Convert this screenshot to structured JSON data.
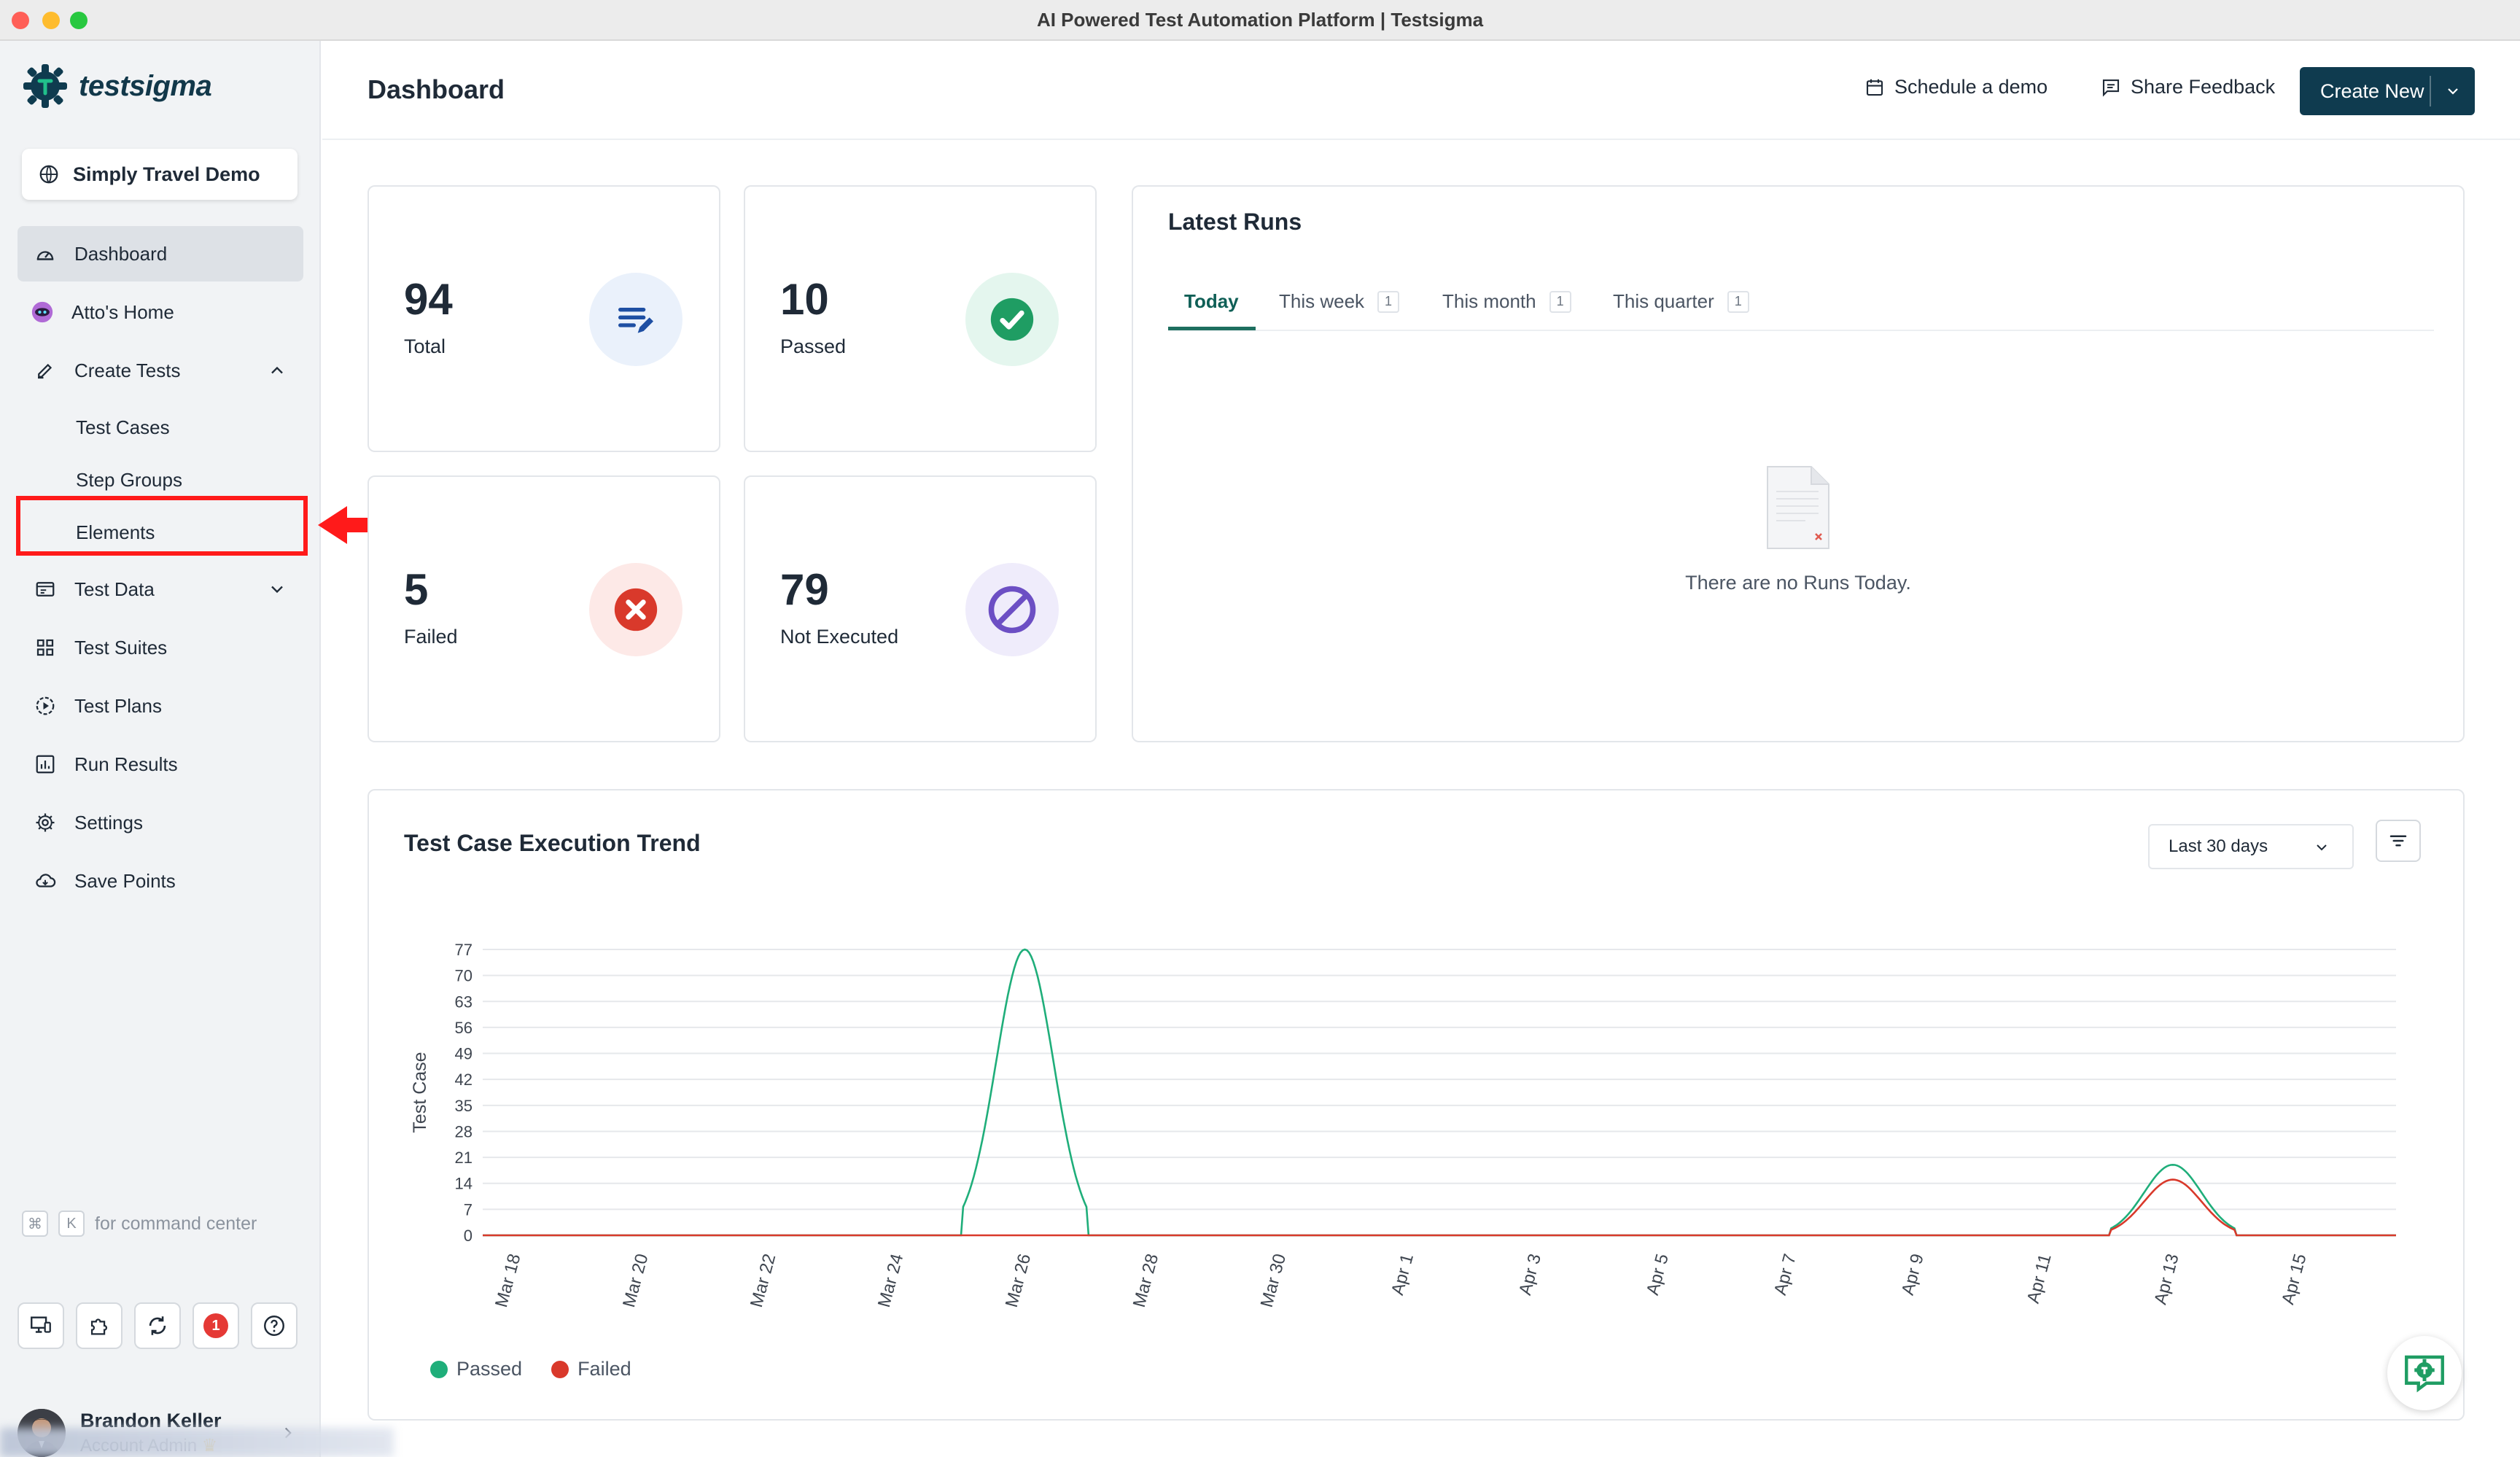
{
  "window": {
    "title": "AI Powered Test Automation Platform | Testsigma"
  },
  "brand": {
    "name": "testsigma",
    "color": "#0f3b4f"
  },
  "sidebar": {
    "project": "Simply Travel Demo",
    "items": [
      {
        "label": "Dashboard",
        "icon": "dashboard-icon",
        "active": true
      },
      {
        "label": "Atto's Home",
        "icon": "atto-icon"
      },
      {
        "label": "Create Tests",
        "icon": "pencil-icon",
        "expanded": true,
        "children": [
          "Test Cases",
          "Step Groups",
          "Elements"
        ]
      },
      {
        "label": "Test Data",
        "icon": "test-data-icon",
        "expanded": false
      },
      {
        "label": "Test Suites",
        "icon": "grid-icon"
      },
      {
        "label": "Test Plans",
        "icon": "play-circle-icon"
      },
      {
        "label": "Run Results",
        "icon": "bar-report-icon"
      },
      {
        "label": "Settings",
        "icon": "gear-icon"
      },
      {
        "label": "Save Points",
        "icon": "cloud-icon"
      }
    ],
    "highlighted_item": "Elements",
    "command_hint": {
      "keys": [
        "⌘",
        "K"
      ],
      "text": "for command center"
    },
    "notification_count": "1",
    "user": {
      "name": "Brandon Keller",
      "role": "Account Admin"
    }
  },
  "header": {
    "title": "Dashboard",
    "schedule_demo": "Schedule a demo",
    "share_feedback": "Share Feedback",
    "create_new": "Create New"
  },
  "stats": [
    {
      "value": "94",
      "label": "Total",
      "icon": "list-edit-icon",
      "bg": "#eaf1fb",
      "fg": "#1e4fa3"
    },
    {
      "value": "10",
      "label": "Passed",
      "icon": "check-icon",
      "bg": "#e4f6ee",
      "fg": "#1f9d63"
    },
    {
      "value": "5",
      "label": "Failed",
      "icon": "x-circle-icon",
      "bg": "#fde9e7",
      "fg": "#d9392b"
    },
    {
      "value": "79",
      "label": "Not Executed",
      "icon": "ban-icon",
      "bg": "#efecfb",
      "fg": "#6c4fc4"
    }
  ],
  "latest_runs": {
    "title": "Latest Runs",
    "tabs": [
      {
        "label": "Today",
        "count": ""
      },
      {
        "label": "This week",
        "count": "1"
      },
      {
        "label": "This month",
        "count": "1"
      },
      {
        "label": "This quarter",
        "count": "1"
      }
    ],
    "empty_text": "There are no Runs Today."
  },
  "trend": {
    "title": "Test Case Execution Trend",
    "range": "Last 30 days"
  },
  "chart_data": {
    "type": "line",
    "title": "Test Case Execution Trend",
    "xlabel": "",
    "ylabel": "Test Case",
    "ylim": [
      0,
      77
    ],
    "yticks": [
      0,
      7,
      14,
      21,
      28,
      35,
      42,
      49,
      56,
      63,
      70,
      77
    ],
    "x_tick_labels": [
      "Mar 18",
      "Mar 20",
      "Mar 22",
      "Mar 24",
      "Mar 26",
      "Mar 28",
      "Mar 30",
      "Apr 1",
      "Apr 3",
      "Apr 5",
      "Apr 7",
      "Apr 9",
      "Apr 11",
      "Apr 13",
      "Apr 15"
    ],
    "x": [
      "Mar 18",
      "Mar 19",
      "Mar 20",
      "Mar 21",
      "Mar 22",
      "Mar 23",
      "Mar 24",
      "Mar 25",
      "Mar 26",
      "Mar 27",
      "Mar 28",
      "Mar 29",
      "Mar 30",
      "Mar 31",
      "Apr 1",
      "Apr 2",
      "Apr 3",
      "Apr 4",
      "Apr 5",
      "Apr 6",
      "Apr 7",
      "Apr 8",
      "Apr 9",
      "Apr 10",
      "Apr 11",
      "Apr 12",
      "Apr 13",
      "Apr 14",
      "Apr 15",
      "Apr 16"
    ],
    "series": [
      {
        "name": "Passed",
        "color": "#1fae7a",
        "values": [
          0,
          0,
          0,
          0,
          0,
          0,
          0,
          0,
          77,
          0,
          0,
          0,
          0,
          0,
          0,
          0,
          0,
          0,
          0,
          0,
          0,
          0,
          0,
          0,
          0,
          0,
          19,
          0,
          0,
          0
        ]
      },
      {
        "name": "Failed",
        "color": "#d9392b",
        "values": [
          0,
          0,
          0,
          0,
          0,
          0,
          0,
          0,
          0,
          0,
          0,
          0,
          0,
          0,
          0,
          0,
          0,
          0,
          0,
          0,
          0,
          0,
          0,
          0,
          0,
          0,
          15,
          0,
          0,
          0
        ]
      }
    ],
    "legend": "bottom-left",
    "grid": true
  }
}
